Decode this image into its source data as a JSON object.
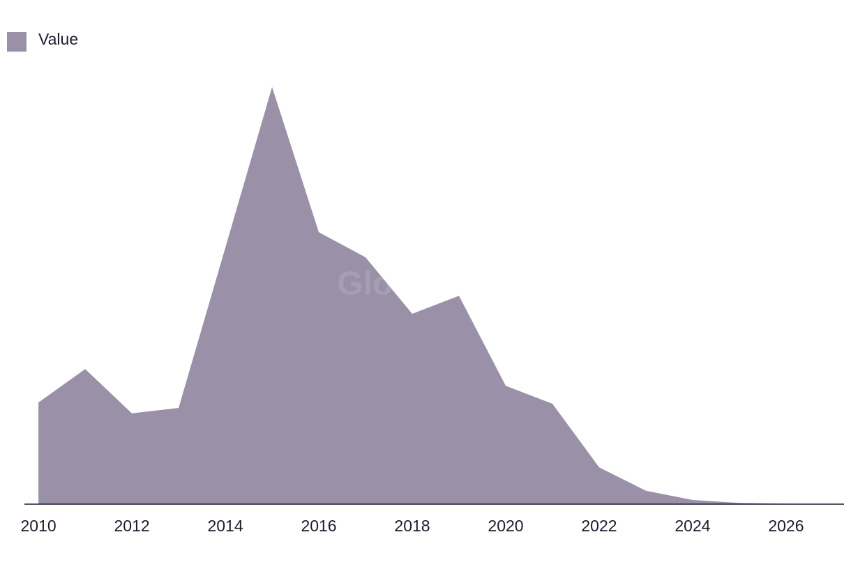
{
  "chart_data": {
    "type": "area",
    "watermark": "GlobalData",
    "x": [
      2010,
      2011,
      2012,
      2013,
      2014,
      2015,
      2016,
      2017,
      2018,
      2019,
      2020,
      2021,
      2022,
      2023,
      2024,
      2025,
      2026,
      2027
    ],
    "series": [
      {
        "name": "Value",
        "color": "#9a91a9",
        "values": [
          24.3,
          32.3,
          21.7,
          23,
          61.3,
          99.7,
          65,
          59,
          45.5,
          49.8,
          28.3,
          24,
          8.8,
          3.2,
          1,
          0.3,
          0.1,
          0
        ]
      }
    ],
    "xlim": [
      2009.7,
      2027.24
    ],
    "xticks": [
      2010,
      2012,
      2014,
      2016,
      2018,
      2020,
      2022,
      2024,
      2026
    ],
    "ylim": [
      0,
      100
    ],
    "legend": "top-left"
  }
}
